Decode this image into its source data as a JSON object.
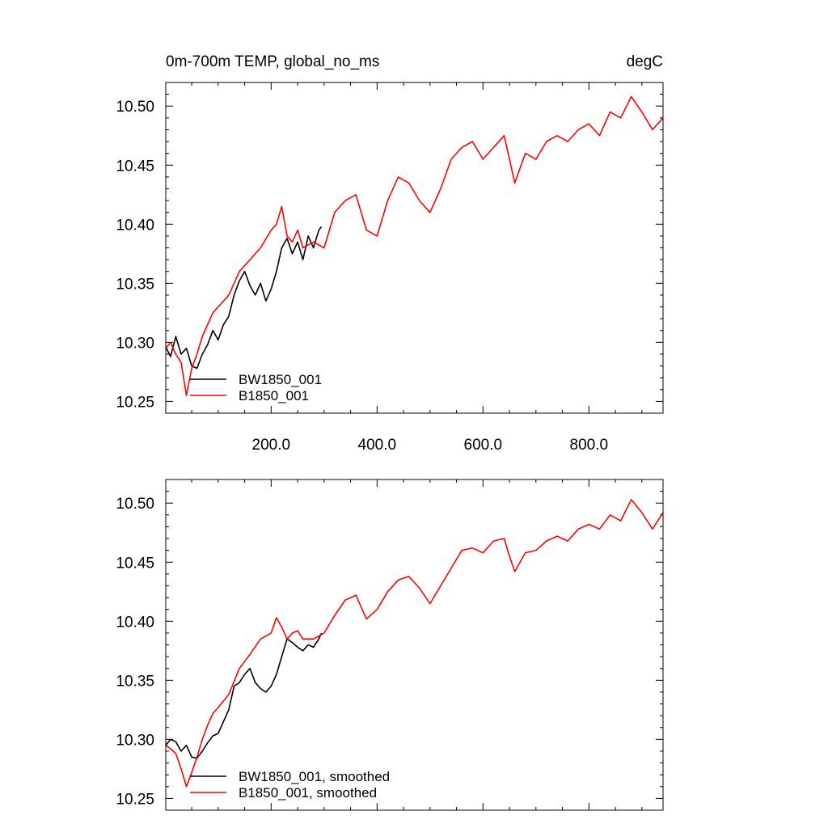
{
  "chart_data": [
    {
      "type": "line",
      "title": "0m-700m TEMP, global_no_ms",
      "units": "degC",
      "xlim": [
        1,
        940
      ],
      "ylim": [
        10.24,
        10.52
      ],
      "x_ticks": [
        200,
        400,
        600,
        800
      ],
      "x_tick_labels": [
        "200.0",
        "400.0",
        "600.0",
        "800.0"
      ],
      "y_ticks": [
        10.25,
        10.3,
        10.35,
        10.4,
        10.45,
        10.5
      ],
      "y_tick_labels": [
        "10.25",
        "10.30",
        "10.35",
        "10.40",
        "10.45",
        "10.50"
      ],
      "legend_placement": "bottom-left",
      "grid": false,
      "series": [
        {
          "name": "BW1850_001",
          "color": "#000000",
          "x": [
            1,
            10,
            20,
            30,
            40,
            50,
            60,
            70,
            80,
            90,
            100,
            110,
            120,
            130,
            140,
            150,
            160,
            170,
            180,
            190,
            200,
            210,
            220,
            230,
            240,
            250,
            260,
            270,
            280,
            290,
            295
          ],
          "y": [
            10.296,
            10.288,
            10.305,
            10.29,
            10.295,
            10.28,
            10.278,
            10.29,
            10.298,
            10.31,
            10.302,
            10.315,
            10.322,
            10.34,
            10.352,
            10.36,
            10.348,
            10.34,
            10.35,
            10.335,
            10.345,
            10.36,
            10.38,
            10.388,
            10.375,
            10.385,
            10.37,
            10.39,
            10.38,
            10.395,
            10.398
          ]
        },
        {
          "name": "B1850_001",
          "color": "#ff0000",
          "x": [
            1,
            10,
            20,
            30,
            40,
            50,
            60,
            70,
            80,
            90,
            100,
            120,
            140,
            160,
            180,
            200,
            210,
            220,
            230,
            240,
            250,
            260,
            280,
            300,
            320,
            340,
            360,
            380,
            400,
            420,
            440,
            460,
            480,
            500,
            520,
            540,
            560,
            580,
            600,
            620,
            640,
            650,
            660,
            680,
            700,
            720,
            740,
            760,
            780,
            800,
            820,
            840,
            860,
            880,
            900,
            920,
            940
          ],
          "y": [
            10.295,
            10.3,
            10.29,
            10.283,
            10.255,
            10.278,
            10.29,
            10.305,
            10.315,
            10.325,
            10.33,
            10.34,
            10.36,
            10.37,
            10.38,
            10.395,
            10.4,
            10.415,
            10.39,
            10.385,
            10.395,
            10.38,
            10.385,
            10.38,
            10.41,
            10.42,
            10.425,
            10.395,
            10.39,
            10.42,
            10.44,
            10.435,
            10.42,
            10.41,
            10.43,
            10.455,
            10.465,
            10.47,
            10.455,
            10.465,
            10.475,
            10.455,
            10.435,
            10.46,
            10.455,
            10.47,
            10.475,
            10.47,
            10.48,
            10.485,
            10.475,
            10.495,
            10.49,
            10.508,
            10.495,
            10.48,
            10.49
          ]
        }
      ]
    },
    {
      "type": "line",
      "title": "",
      "units": "",
      "xlim": [
        1,
        940
      ],
      "ylim": [
        10.24,
        10.52
      ],
      "x_ticks": [
        200,
        400,
        600,
        800
      ],
      "x_tick_labels": [],
      "y_ticks": [
        10.25,
        10.3,
        10.35,
        10.4,
        10.45,
        10.5
      ],
      "y_tick_labels": [
        "10.25",
        "10.30",
        "10.35",
        "10.40",
        "10.45",
        "10.50"
      ],
      "legend_placement": "bottom-left",
      "grid": false,
      "series": [
        {
          "name": "BW1850_001, smoothed",
          "color": "#000000",
          "x": [
            1,
            10,
            20,
            30,
            40,
            50,
            60,
            70,
            80,
            90,
            100,
            110,
            120,
            130,
            140,
            150,
            160,
            170,
            180,
            190,
            200,
            210,
            220,
            230,
            240,
            250,
            260,
            270,
            280,
            290,
            295
          ],
          "y": [
            10.295,
            10.3,
            10.298,
            10.29,
            10.295,
            10.285,
            10.284,
            10.29,
            10.297,
            10.303,
            10.305,
            10.315,
            10.325,
            10.345,
            10.348,
            10.355,
            10.36,
            10.348,
            10.343,
            10.34,
            10.345,
            10.355,
            10.37,
            10.385,
            10.382,
            10.378,
            10.375,
            10.38,
            10.378,
            10.385,
            10.39
          ]
        },
        {
          "name": "B1850_001, smoothed",
          "color": "#ff0000",
          "x": [
            1,
            10,
            20,
            30,
            40,
            50,
            60,
            70,
            80,
            90,
            100,
            120,
            140,
            160,
            180,
            200,
            210,
            220,
            230,
            240,
            250,
            260,
            280,
            300,
            320,
            340,
            360,
            380,
            400,
            420,
            440,
            460,
            480,
            500,
            520,
            540,
            560,
            580,
            600,
            620,
            640,
            650,
            660,
            680,
            700,
            720,
            740,
            760,
            780,
            800,
            820,
            840,
            860,
            880,
            900,
            920,
            940
          ],
          "y": [
            10.295,
            10.292,
            10.288,
            10.275,
            10.26,
            10.272,
            10.285,
            10.3,
            10.312,
            10.322,
            10.327,
            10.338,
            10.36,
            10.372,
            10.385,
            10.39,
            10.403,
            10.395,
            10.385,
            10.39,
            10.392,
            10.385,
            10.385,
            10.39,
            10.405,
            10.418,
            10.422,
            10.402,
            10.41,
            10.425,
            10.435,
            10.438,
            10.428,
            10.415,
            10.43,
            10.445,
            10.46,
            10.462,
            10.458,
            10.468,
            10.47,
            10.455,
            10.442,
            10.458,
            10.46,
            10.468,
            10.472,
            10.468,
            10.478,
            10.482,
            10.478,
            10.49,
            10.485,
            10.503,
            10.492,
            10.478,
            10.492
          ]
        }
      ]
    }
  ]
}
